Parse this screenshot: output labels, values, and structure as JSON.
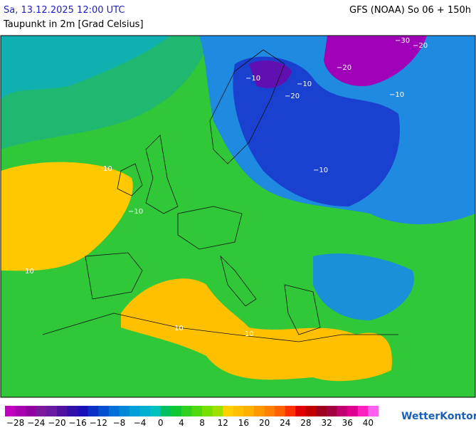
{
  "header": {
    "date": "Sa, 13.12.2025 12:00 UTC",
    "model": "GFS (NOAA) So 06 + 150h",
    "parameter": "Taupunkt in 2m [Grad Celsius]"
  },
  "map": {
    "contour_labels": [
      "−30",
      "−20",
      "−20",
      "−10",
      "−10",
      "−20",
      "−10",
      "−10",
      "10",
      "10",
      "10",
      "10",
      "−10"
    ]
  },
  "legend": {
    "colors": [
      "#c000c0",
      "#a800b0",
      "#9000a0",
      "#7a1a9a",
      "#6a1aa0",
      "#5010a0",
      "#3010a8",
      "#1a10b8",
      "#0a30c8",
      "#0050d0",
      "#0070d8",
      "#0088d8",
      "#00a0d8",
      "#00b0d0",
      "#00c0c0",
      "#00c060",
      "#10c830",
      "#30d020",
      "#50d810",
      "#78e000",
      "#a0e000",
      "#ffd000",
      "#ffc000",
      "#ffb000",
      "#ff9800",
      "#ff8000",
      "#ff6000",
      "#ff3000",
      "#e00000",
      "#c00000",
      "#a00020",
      "#a00040",
      "#c00070",
      "#e00090",
      "#ff20c0",
      "#ff60f0"
    ],
    "labels": [
      "−28",
      "−24",
      "−20",
      "−16",
      "−12",
      "−8",
      "−4",
      "0",
      "4",
      "8",
      "12",
      "16",
      "20",
      "24",
      "28",
      "32",
      "36",
      "40"
    ]
  },
  "brand": "WetterKontor"
}
